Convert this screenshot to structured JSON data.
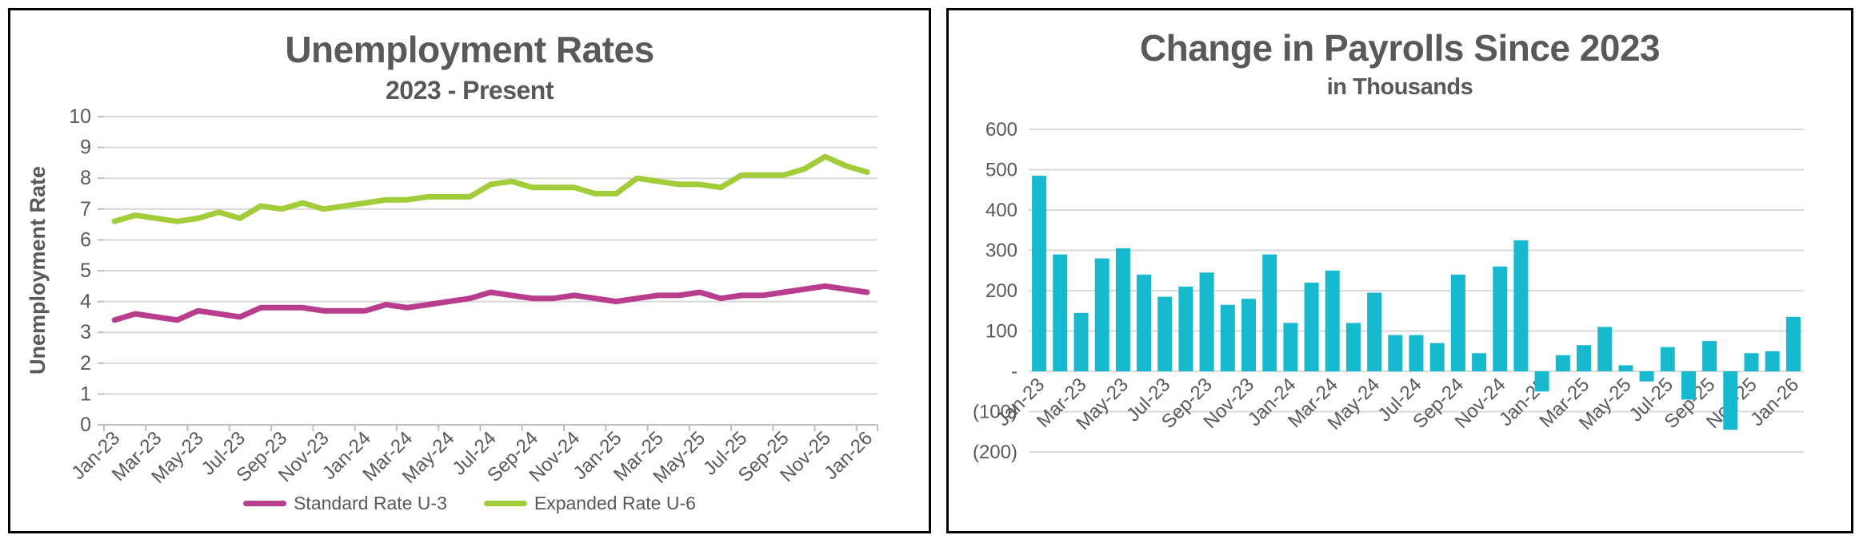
{
  "styles": {
    "background": "#ffffff",
    "panel_border_color": "#000000",
    "title_color": "#595959",
    "axis_text_color": "#595959",
    "gridline_color": "#d9d9d9",
    "axis_line_color": "#bfbfbf"
  },
  "chart_data": [
    {
      "type": "line",
      "title": "Unemployment Rates",
      "subtitle": "2023 - Present",
      "ylabel": "Unemployment Rate",
      "xlabel": "",
      "ylim": [
        0,
        10
      ],
      "y_ticks": [
        10,
        9,
        8,
        7,
        6,
        5,
        4,
        3,
        2,
        1,
        0
      ],
      "x_label_interval": 2,
      "grid": true,
      "legend_position": "bottom",
      "categories": [
        "Jan-23",
        "Feb-23",
        "Mar-23",
        "Apr-23",
        "May-23",
        "Jun-23",
        "Jul-23",
        "Aug-23",
        "Sep-23",
        "Oct-23",
        "Nov-23",
        "Dec-23",
        "Jan-24",
        "Feb-24",
        "Mar-24",
        "Apr-24",
        "May-24",
        "Jun-24",
        "Jul-24",
        "Aug-24",
        "Sep-24",
        "Oct-24",
        "Nov-24",
        "Dec-24",
        "Jan-25",
        "Feb-25",
        "Mar-25",
        "Apr-25",
        "May-25",
        "Jun-25",
        "Jul-25",
        "Aug-25",
        "Sep-25",
        "Oct-25",
        "Nov-25",
        "Dec-25",
        "Jan-26"
      ],
      "series": [
        {
          "name": "Standard Rate U-3",
          "color": "#b93d8d",
          "values": [
            3.4,
            3.6,
            3.5,
            3.4,
            3.7,
            3.6,
            3.5,
            3.8,
            3.8,
            3.8,
            3.7,
            3.7,
            3.7,
            3.9,
            3.8,
            3.9,
            4.0,
            4.1,
            4.3,
            4.2,
            4.1,
            4.1,
            4.2,
            4.1,
            4.0,
            4.1,
            4.2,
            4.2,
            4.3,
            4.1,
            4.2,
            4.2,
            4.3,
            4.4,
            4.5,
            4.4,
            4.3
          ]
        },
        {
          "name": "Expanded Rate U-6",
          "color": "#a2cc3a",
          "values": [
            6.6,
            6.8,
            6.7,
            6.6,
            6.7,
            6.9,
            6.7,
            7.1,
            7.0,
            7.2,
            7.0,
            7.1,
            7.2,
            7.3,
            7.3,
            7.4,
            7.4,
            7.4,
            7.8,
            7.9,
            7.7,
            7.7,
            7.7,
            7.5,
            7.5,
            8.0,
            7.9,
            7.8,
            7.8,
            7.7,
            8.1,
            8.1,
            8.1,
            8.3,
            8.7,
            8.4,
            8.2
          ]
        }
      ]
    },
    {
      "type": "bar",
      "title": "Change in Payrolls Since 2023",
      "subtitle": "in Thousands",
      "xlabel": "",
      "ylabel": "",
      "ylim": [
        -200,
        600
      ],
      "y_tick_values": [
        600,
        500,
        400,
        300,
        200,
        100,
        0,
        -100,
        -200
      ],
      "y_tick_labels": [
        "600",
        "500",
        "400",
        "300",
        "200",
        "100",
        "-",
        "(100)",
        "(200)"
      ],
      "x_label_interval": 2,
      "grid": true,
      "bar_color": "#17b9ce",
      "categories": [
        "Jan-23",
        "Feb-23",
        "Mar-23",
        "Apr-23",
        "May-23",
        "Jun-23",
        "Jul-23",
        "Aug-23",
        "Sep-23",
        "Oct-23",
        "Nov-23",
        "Dec-23",
        "Jan-24",
        "Feb-24",
        "Mar-24",
        "Apr-24",
        "May-24",
        "Jun-24",
        "Jul-24",
        "Aug-24",
        "Sep-24",
        "Oct-24",
        "Nov-24",
        "Dec-24",
        "Jan-25",
        "Feb-25",
        "Mar-25",
        "Apr-25",
        "May-25",
        "Jun-25",
        "Jul-25",
        "Aug-25",
        "Sep-25",
        "Oct-25",
        "Nov-25",
        "Dec-25",
        "Jan-26"
      ],
      "values": [
        485,
        290,
        145,
        280,
        305,
        240,
        185,
        210,
        245,
        165,
        180,
        290,
        120,
        220,
        250,
        120,
        195,
        90,
        90,
        70,
        240,
        45,
        260,
        325,
        -50,
        40,
        65,
        110,
        15,
        -25,
        60,
        -70,
        75,
        -145,
        45,
        50,
        135
      ]
    }
  ]
}
